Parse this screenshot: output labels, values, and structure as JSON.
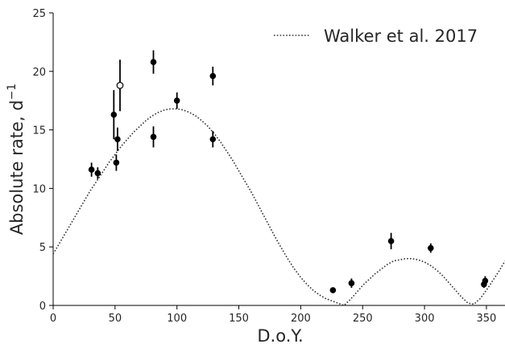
{
  "chart_data": {
    "type": "scatter",
    "xlabel": "D.o.Y.",
    "ylabel": "Absolute rate, d",
    "ylabel_superscript": "−1",
    "xlim": [
      0,
      365
    ],
    "ylim": [
      0,
      25
    ],
    "grid": false,
    "x_ticks": [
      0,
      50,
      100,
      150,
      200,
      250,
      300,
      350
    ],
    "y_ticks": [
      0,
      5,
      10,
      15,
      20,
      25
    ],
    "legend_position": "top-right",
    "series": [
      {
        "name": "Walker et al. 2017",
        "style": "dotted-line",
        "color": "#333333",
        "x": [
          0,
          5,
          10,
          15,
          20,
          25,
          30,
          35,
          40,
          45,
          50,
          55,
          60,
          65,
          70,
          75,
          80,
          85,
          90,
          95,
          100,
          105,
          110,
          115,
          120,
          125,
          130,
          135,
          140,
          145,
          150,
          155,
          160,
          165,
          170,
          175,
          180,
          185,
          190,
          195,
          200,
          205,
          210,
          215,
          220,
          225,
          230,
          235,
          240,
          245,
          250,
          255,
          260,
          265,
          270,
          275,
          280,
          285,
          290,
          295,
          300,
          305,
          310,
          315,
          320,
          325,
          330,
          335,
          340,
          345,
          350,
          355,
          360,
          365
        ],
        "y": [
          4.4,
          5.3,
          6.2,
          7.1,
          8.0,
          8.9,
          9.8,
          10.6,
          11.4,
          12.2,
          12.9,
          13.6,
          14.2,
          14.8,
          15.3,
          15.8,
          16.2,
          16.5,
          16.7,
          16.8,
          16.8,
          16.7,
          16.5,
          16.2,
          15.8,
          15.3,
          14.7,
          14.0,
          13.2,
          12.4,
          11.5,
          10.6,
          9.7,
          8.7,
          7.7,
          6.7,
          5.7,
          4.8,
          3.9,
          3.1,
          2.4,
          1.8,
          1.3,
          0.9,
          0.6,
          0.4,
          0.2,
          0.0,
          0.5,
          1.1,
          1.7,
          2.2,
          2.7,
          3.1,
          3.5,
          3.8,
          3.9,
          4.0,
          4.0,
          3.9,
          3.7,
          3.4,
          3.0,
          2.5,
          1.9,
          1.3,
          0.7,
          0.2,
          0.1,
          0.6,
          1.3,
          2.1,
          2.9,
          3.8
        ]
      },
      {
        "name": "",
        "style": "filled-markers",
        "color": "#000000",
        "points": [
          {
            "x": 31,
            "y": 11.6,
            "err": 0.6
          },
          {
            "x": 36,
            "y": 11.3,
            "err": 0.5
          },
          {
            "x": 49,
            "y": 16.3,
            "err": 2.1
          },
          {
            "x": 51,
            "y": 12.2,
            "err": 0.7
          },
          {
            "x": 52,
            "y": 14.2,
            "err": 1.0
          },
          {
            "x": 81,
            "y": 20.8,
            "err": 1.0
          },
          {
            "x": 81,
            "y": 14.4,
            "err": 0.9
          },
          {
            "x": 100,
            "y": 17.5,
            "err": 0.7
          },
          {
            "x": 129,
            "y": 19.6,
            "err": 0.8
          },
          {
            "x": 129,
            "y": 14.2,
            "err": 0.7
          },
          {
            "x": 226,
            "y": 1.3,
            "err": 0.2
          },
          {
            "x": 241,
            "y": 1.9,
            "err": 0.4
          },
          {
            "x": 273,
            "y": 5.5,
            "err": 0.7
          },
          {
            "x": 305,
            "y": 4.9,
            "err": 0.4
          },
          {
            "x": 348,
            "y": 1.8,
            "err": 0.3
          },
          {
            "x": 349,
            "y": 2.1,
            "err": 0.4
          }
        ]
      },
      {
        "name": "",
        "style": "open-markers",
        "color": "#000000",
        "points": [
          {
            "x": 54,
            "y": 18.8,
            "err": 2.2
          }
        ]
      }
    ]
  }
}
